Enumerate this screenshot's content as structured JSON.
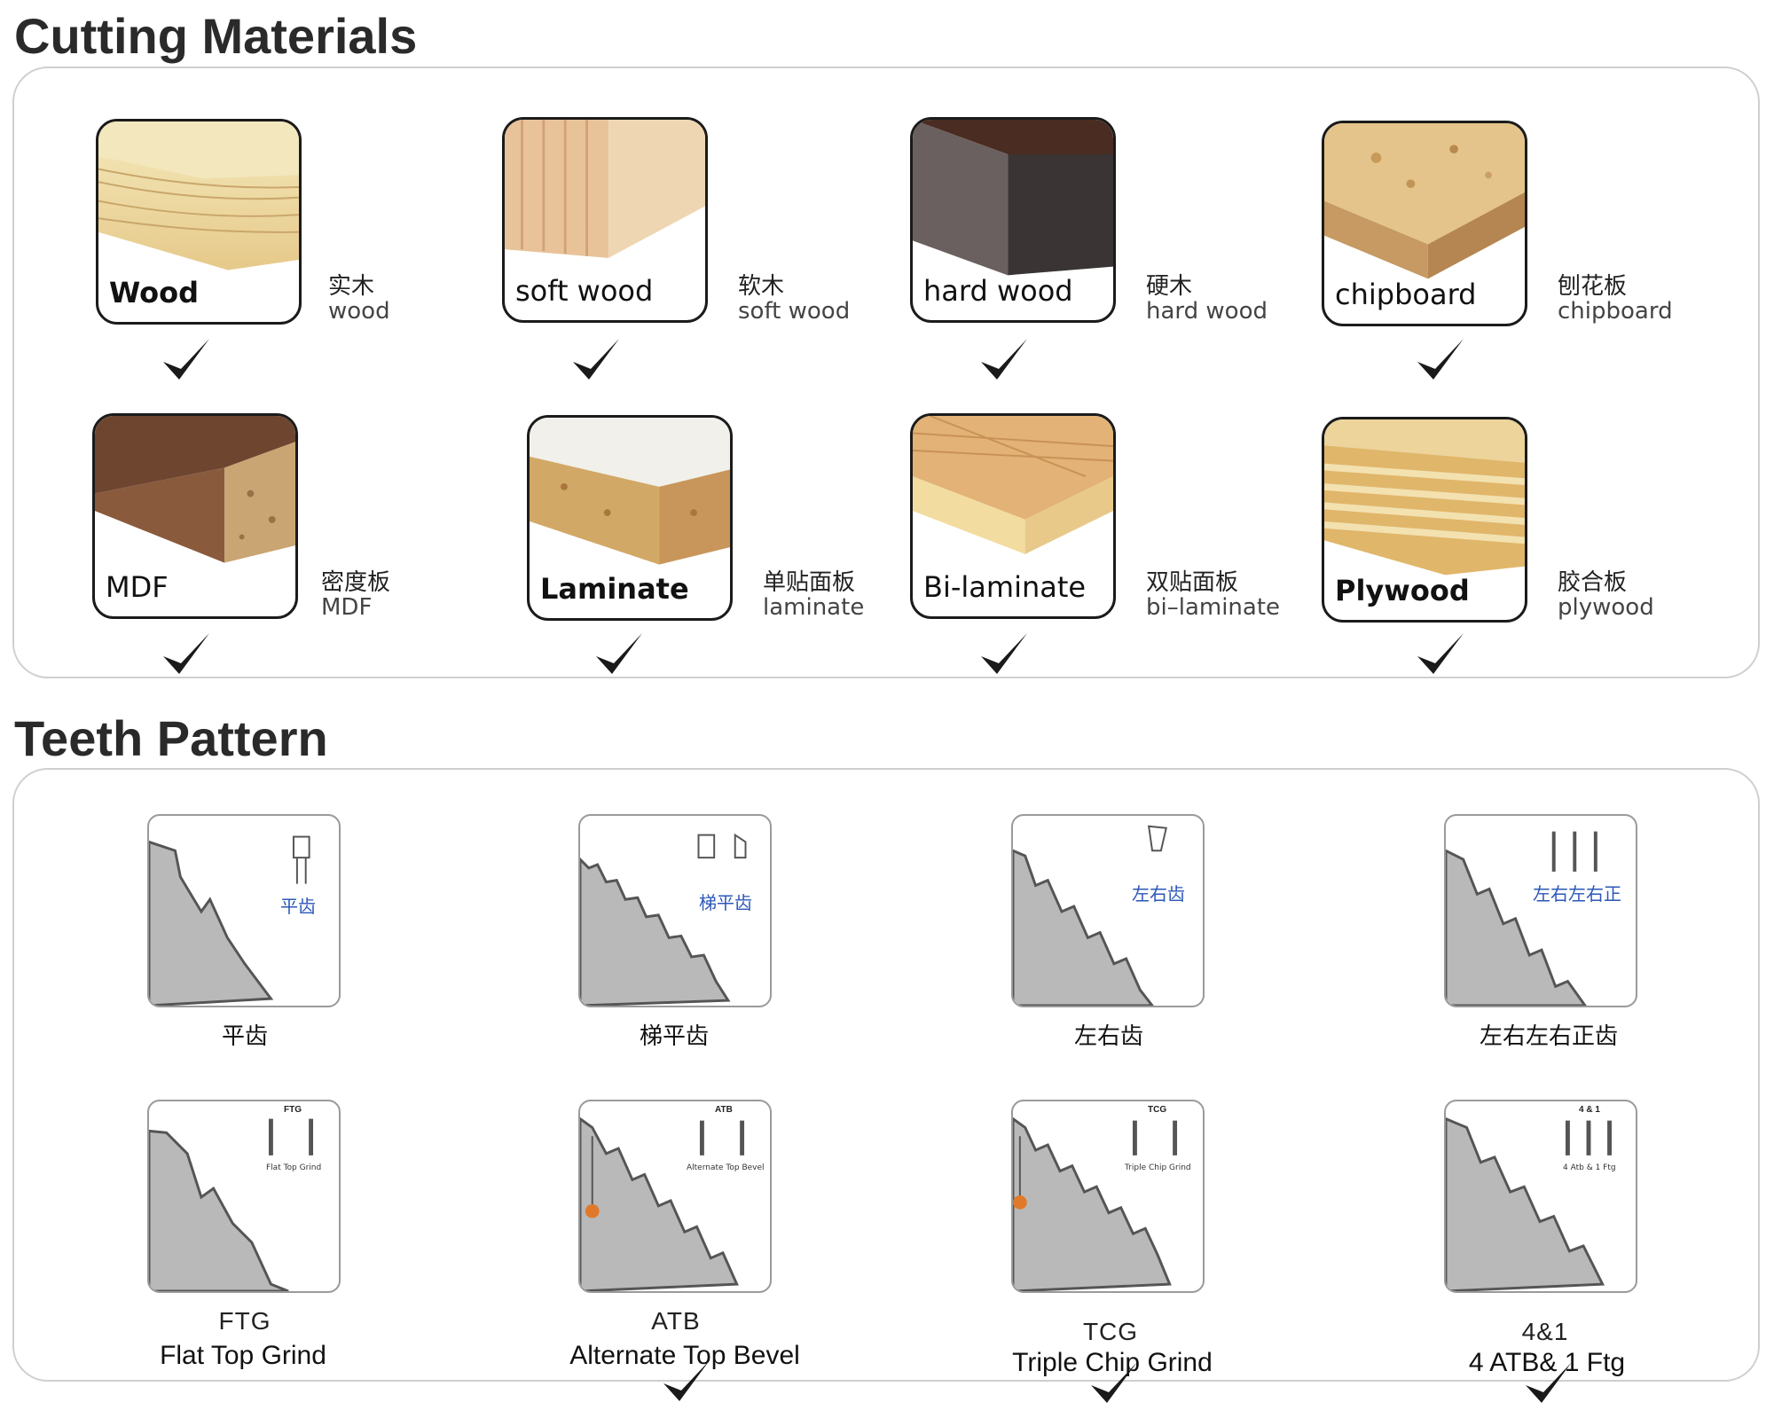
{
  "cutting": {
    "title": "Cutting Materials",
    "items": [
      {
        "label": "Wood",
        "cn": "实木",
        "en": "wood"
      },
      {
        "label": "soft wood",
        "cn": "软木",
        "en": "soft wood"
      },
      {
        "label": "hard wood",
        "cn": "硬木",
        "en": "hard wood"
      },
      {
        "label": "chipboard",
        "cn": "刨花板",
        "en": "chipboard"
      },
      {
        "label": "MDF",
        "cn": "密度板",
        "en": "MDF"
      },
      {
        "label": "Laminate",
        "cn": "单贴面板",
        "en": "laminate"
      },
      {
        "label": "Bi-laminate",
        "cn": "双贴面板",
        "en": "bi–laminate"
      },
      {
        "label": "Plywood",
        "cn": "胶合板",
        "en": "plywood"
      }
    ]
  },
  "teeth": {
    "title": "Teeth Pattern",
    "top": [
      {
        "cn": "平齿",
        "icon_cn": "平齿"
      },
      {
        "cn": "梯平齿",
        "icon_cn": "梯平齿"
      },
      {
        "cn": "左右齿",
        "icon_cn": "左右齿"
      },
      {
        "cn": "左右左右正齿",
        "icon_cn": "左右左右正"
      }
    ],
    "bottom": [
      {
        "code": "FTG",
        "name": "Flat Top Grind",
        "icon_head": "FTG",
        "icon_sub": "Flat Top Grind"
      },
      {
        "code": "ATB",
        "name": "Alternate Top Bevel",
        "icon_head": "ATB",
        "icon_sub": "Alternate Top Bevel"
      },
      {
        "code": "TCG",
        "name": "Triple Chip Grind",
        "icon_head": "TCG",
        "icon_sub": "Triple Chip Grind"
      },
      {
        "code": "4&1",
        "name": "4 ATB& 1 Ftg",
        "icon_head": "4 & 1",
        "icon_sub": "4 Atb & 1 Ftg"
      }
    ]
  },
  "icons": {
    "check": "checkmark-icon"
  },
  "colors": {
    "border": "#cfcfcf",
    "accent_blue": "#2b57b8",
    "blade": "#b9b9b9"
  }
}
